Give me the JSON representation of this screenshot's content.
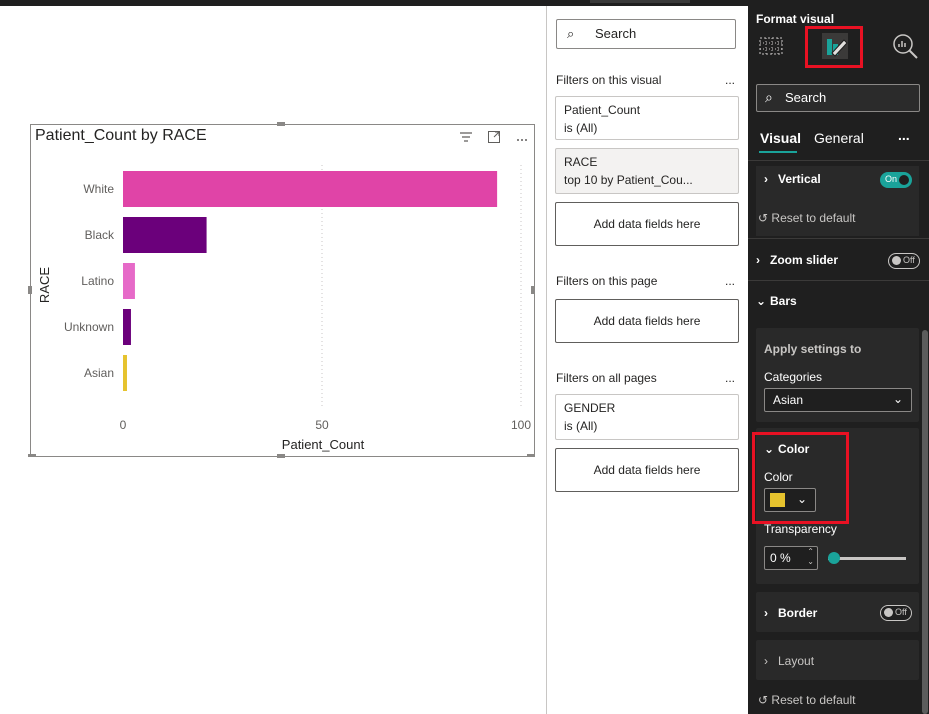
{
  "visual": {
    "title": "Patient_Count by RACE",
    "header_icons": [
      "filter-icon",
      "focus-mode-icon",
      "more-options-icon"
    ]
  },
  "chart_data": {
    "type": "bar",
    "orientation": "horizontal",
    "title": "Patient_Count by RACE",
    "categories": [
      "White",
      "Black",
      "Latino",
      "Unknown",
      "Asian"
    ],
    "values": [
      94,
      21,
      3,
      2,
      1
    ],
    "colors": [
      "#e044a7",
      "#6b007b",
      "#e66ac8",
      "#6b007b",
      "#e6c32e"
    ],
    "xlabel": "Patient_Count",
    "ylabel": "RACE",
    "xlim": [
      0,
      100
    ],
    "xticks": [
      0,
      50,
      100
    ],
    "grid": true
  },
  "filters": {
    "search_placeholder": "Search",
    "on_visual": {
      "title": "Filters on this visual",
      "more": "...",
      "cards": [
        {
          "field": "Patient_Count",
          "state": "is (All)"
        },
        {
          "field": "RACE",
          "state": "top 10 by Patient_Cou..."
        }
      ],
      "add_label": "Add data fields here"
    },
    "on_page": {
      "title": "Filters on this page",
      "more": "...",
      "add_label": "Add data fields here"
    },
    "on_all_pages": {
      "title": "Filters on all pages",
      "more": "...",
      "cards": [
        {
          "field": "GENDER",
          "state": "is (All)"
        }
      ],
      "add_label": "Add data fields here"
    }
  },
  "format": {
    "title": "Format visual",
    "search_placeholder": "Search",
    "tabs": [
      "Visual",
      "General"
    ],
    "more": "...",
    "vertical": {
      "label": "Vertical",
      "toggle": "On"
    },
    "reset_label": "Reset to default",
    "zoom_slider": {
      "label": "Zoom slider",
      "toggle": "Off"
    },
    "bars": {
      "label": "Bars"
    },
    "apply_settings": {
      "label": "Apply settings to",
      "categories_label": "Categories",
      "selected": "Asian"
    },
    "color": {
      "section_label": "Color",
      "field_label": "Color",
      "swatch": "#e6c32e",
      "transparency_label": "Transparency",
      "transparency_value": "0 %",
      "transparency_percent": 0
    },
    "border": {
      "label": "Border",
      "toggle": "Off"
    },
    "layout": {
      "label": "Layout"
    },
    "accent": "#1aa39a",
    "highlight": "#e81123"
  }
}
